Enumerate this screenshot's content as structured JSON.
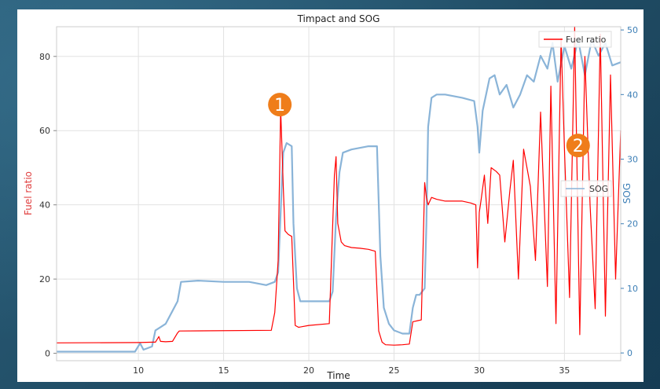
{
  "chart_data": {
    "type": "line",
    "title": "Timpact and SOG",
    "xlabel": "Time",
    "ylabel_left": "Fuel ratio",
    "ylabel_right": "SOG",
    "xlim": [
      5.2,
      38.3
    ],
    "ylim_left": [
      -2,
      88
    ],
    "ylim_right": [
      -1.2,
      50.5
    ],
    "xticks": [
      "10",
      "15",
      "20",
      "25",
      "30",
      "35"
    ],
    "yticks_left": [
      "0",
      "20",
      "40",
      "60",
      "80"
    ],
    "yticks_right": [
      "0",
      "10",
      "20",
      "30",
      "40",
      "50"
    ],
    "grid": true,
    "legend": [
      {
        "label": "Fuel ratio",
        "color": "#ff0000",
        "placement": "top-right"
      },
      {
        "label": "SOG",
        "color": "#8ab4d8",
        "placement": "right"
      }
    ],
    "annotations": [
      {
        "label": "1",
        "x": 18.3,
        "y_left": 67
      },
      {
        "label": "2",
        "x": 35.8,
        "y_left": 56
      }
    ],
    "series": [
      {
        "name": "Fuel ratio",
        "axis": "left",
        "color": "#ff0000",
        "x": [
          5.2,
          10.0,
          10.9,
          11.0,
          11.2,
          11.3,
          11.6,
          12.0,
          12.3,
          12.4,
          17.8,
          18.0,
          18.2,
          18.35,
          18.5,
          18.6,
          18.8,
          19.0,
          19.2,
          19.4,
          20.0,
          21.2,
          21.5,
          21.6,
          21.7,
          21.9,
          22.1,
          22.5,
          23.0,
          23.5,
          23.9,
          24.1,
          24.3,
          24.5,
          25.0,
          25.5,
          25.9,
          26.1,
          26.4,
          26.6,
          26.8,
          26.9,
          27.0,
          27.2,
          27.5,
          28.0,
          28.5,
          29.0,
          29.5,
          29.8,
          29.9,
          30.0,
          30.1,
          30.3,
          30.5,
          30.7,
          31.0,
          31.2,
          31.5,
          31.8,
          32.0,
          32.3,
          32.6,
          33.0,
          33.3,
          33.6,
          34.0,
          34.2,
          34.5,
          34.8,
          35.0,
          35.3,
          35.6,
          35.9,
          36.2,
          36.5,
          36.8,
          37.1,
          37.4,
          37.7,
          38.0,
          38.3
        ],
        "values": [
          2.8,
          2.9,
          3.0,
          3.0,
          4.5,
          3.2,
          3.1,
          3.2,
          5.5,
          6.0,
          6.2,
          11.0,
          25.0,
          66.0,
          45.0,
          33.0,
          32.0,
          31.5,
          7.5,
          7.0,
          7.5,
          8.0,
          48.0,
          53.0,
          35.0,
          30.0,
          29.0,
          28.5,
          28.3,
          28.0,
          27.5,
          6.0,
          3.0,
          2.3,
          2.2,
          2.3,
          2.5,
          8.5,
          8.8,
          9.0,
          46.0,
          42.0,
          40.0,
          42.0,
          41.5,
          41.0,
          41.0,
          41.0,
          40.5,
          40.0,
          23.0,
          38.0,
          41.0,
          48.0,
          35.0,
          50.0,
          49.0,
          48.0,
          30.0,
          44.0,
          52.0,
          20.0,
          55.0,
          45.0,
          25.0,
          65.0,
          18.0,
          72.0,
          8.0,
          85.0,
          55.0,
          15.0,
          88.0,
          5.0,
          80.0,
          40.0,
          12.0,
          86.0,
          10.0,
          75.0,
          20.0,
          60.0
        ]
      },
      {
        "name": "SOG",
        "axis": "right",
        "color": "#8ab4d8",
        "x": [
          5.2,
          9.8,
          10.1,
          10.3,
          10.5,
          10.8,
          11.0,
          11.3,
          11.6,
          12.0,
          12.3,
          12.5,
          13.5,
          15.0,
          16.5,
          17.5,
          18.0,
          18.2,
          18.4,
          18.5,
          18.7,
          19.0,
          19.1,
          19.3,
          19.5,
          20.5,
          21.2,
          21.4,
          21.6,
          21.8,
          22.0,
          22.5,
          23.5,
          24.0,
          24.2,
          24.4,
          24.7,
          25.0,
          25.5,
          25.9,
          26.1,
          26.3,
          26.5,
          26.8,
          26.9,
          27.0,
          27.2,
          27.5,
          28.0,
          29.0,
          29.7,
          29.9,
          30.0,
          30.2,
          30.6,
          30.9,
          31.2,
          31.6,
          32.0,
          32.4,
          32.8,
          33.2,
          33.6,
          34.0,
          34.3,
          34.6,
          35.0,
          35.4,
          35.8,
          36.2,
          36.6,
          37.0,
          37.4,
          37.8,
          38.3
        ],
        "values": [
          0.2,
          0.2,
          1.5,
          0.5,
          0.7,
          1.0,
          3.5,
          4.0,
          4.5,
          6.5,
          8.0,
          11.0,
          11.2,
          11.0,
          11.0,
          10.5,
          11.0,
          12.5,
          25.0,
          31.0,
          32.5,
          32.0,
          20.0,
          10.0,
          8.0,
          8.0,
          8.0,
          9.5,
          21.0,
          28.0,
          31.0,
          31.5,
          32.0,
          32.0,
          15.0,
          7.0,
          4.5,
          3.5,
          3.0,
          3.0,
          7.0,
          9.0,
          9.0,
          10.0,
          20.0,
          35.0,
          39.5,
          40.0,
          40.0,
          39.5,
          39.0,
          35.0,
          31.0,
          37.5,
          42.5,
          43.0,
          40.0,
          41.5,
          38.0,
          40.0,
          43.0,
          42.0,
          46.0,
          44.0,
          48.0,
          42.0,
          47.5,
          44.0,
          48.5,
          43.0,
          48.5,
          46.0,
          48.0,
          44.5,
          45.0
        ]
      }
    ]
  }
}
